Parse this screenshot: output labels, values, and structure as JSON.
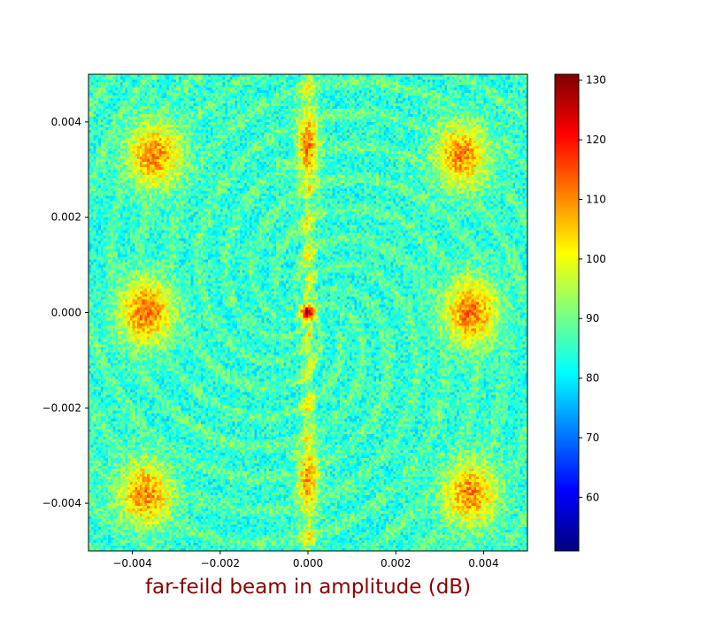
{
  "chart_data": {
    "type": "heatmap",
    "title": "",
    "xlabel": "far-feild beam in amplitude (dB)",
    "ylabel": "",
    "xlim": [
      -0.005,
      0.005
    ],
    "ylim": [
      -0.005,
      0.005
    ],
    "x_ticks": [
      "−0.004",
      "−0.002",
      "0.000",
      "0.002",
      "0.004"
    ],
    "x_tick_values": [
      -0.004,
      -0.002,
      0.0,
      0.002,
      0.004
    ],
    "y_ticks": [
      "−0.004",
      "−0.002",
      "0.000",
      "0.002",
      "0.004"
    ],
    "y_tick_values": [
      -0.004,
      -0.002,
      0.0,
      0.002,
      0.004
    ],
    "colormap": "jet",
    "colorbar": {
      "min": 51,
      "max": 131,
      "ticks": [
        "60",
        "70",
        "80",
        "90",
        "100",
        "110",
        "120",
        "130"
      ],
      "tick_values": [
        60,
        70,
        80,
        90,
        100,
        110,
        120,
        130
      ]
    },
    "grid": false,
    "features": [
      {
        "x": 0.0,
        "y": 0.0,
        "value": 131
      },
      {
        "x": -0.0037,
        "y": 0.0,
        "value": 112
      },
      {
        "x": 0.0037,
        "y": 0.0,
        "value": 112
      },
      {
        "x": -0.0035,
        "y": 0.0033,
        "value": 110
      },
      {
        "x": 0.0035,
        "y": 0.0033,
        "value": 110
      },
      {
        "x": -0.0037,
        "y": -0.0038,
        "value": 110
      },
      {
        "x": 0.0037,
        "y": -0.0038,
        "value": 110
      },
      {
        "x": 0.0,
        "y": 0.0035,
        "value": 110
      },
      {
        "x": 0.0,
        "y": -0.0035,
        "value": 108
      }
    ],
    "background_value": 84
  },
  "colors": {
    "caption": "#8b0000"
  }
}
